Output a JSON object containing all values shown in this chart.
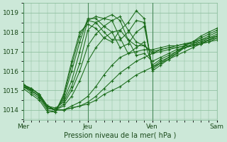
{
  "background_color": "#cce8d8",
  "grid_color": "#88bb99",
  "line_color": "#1a6b1a",
  "marker_color": "#1a6b1a",
  "xlim": [
    0,
    72
  ],
  "ylim": [
    1013.5,
    1019.5
  ],
  "yticks": [
    1014,
    1015,
    1016,
    1017,
    1018,
    1019
  ],
  "xtick_positions": [
    0,
    24,
    48,
    72
  ],
  "xtick_labels": [
    "Mer",
    "Jeu",
    "Ven",
    "Sam"
  ],
  "xlabel": "Pression niveau de la mer( hPa )",
  "series": [
    {
      "x": [
        0,
        3,
        6,
        9,
        12,
        15,
        18,
        21,
        24,
        27,
        30,
        33,
        36,
        39,
        42,
        45,
        48,
        51,
        54,
        57,
        60,
        63,
        66,
        69,
        72
      ],
      "y": [
        1015.2,
        1015.0,
        1014.7,
        1014.1,
        1014.0,
        1014.0,
        1014.1,
        1014.2,
        1014.3,
        1014.5,
        1014.8,
        1015.0,
        1015.2,
        1015.5,
        1015.8,
        1016.0,
        1016.2,
        1016.4,
        1016.6,
        1016.8,
        1017.0,
        1017.2,
        1017.4,
        1017.6,
        1017.8
      ]
    },
    {
      "x": [
        0,
        3,
        6,
        9,
        12,
        15,
        18,
        21,
        24,
        27,
        30,
        33,
        36,
        39,
        42,
        45,
        48,
        51,
        54,
        57,
        60,
        63,
        66,
        69,
        72
      ],
      "y": [
        1015.2,
        1015.0,
        1014.7,
        1014.1,
        1014.0,
        1014.0,
        1014.1,
        1014.2,
        1014.4,
        1014.7,
        1015.1,
        1015.5,
        1015.9,
        1016.2,
        1016.5,
        1016.7,
        1016.9,
        1017.1,
        1017.2,
        1017.3,
        1017.4,
        1017.5,
        1017.6,
        1017.7,
        1017.8
      ]
    },
    {
      "x": [
        0,
        3,
        6,
        9,
        12,
        15,
        18,
        21,
        24,
        27,
        30,
        33,
        36,
        39,
        42,
        45,
        48,
        51,
        54,
        57,
        60,
        63,
        66,
        69,
        72
      ],
      "y": [
        1015.2,
        1015.0,
        1014.7,
        1014.1,
        1014.0,
        1014.0,
        1014.2,
        1014.4,
        1014.7,
        1015.2,
        1015.8,
        1016.3,
        1016.7,
        1016.9,
        1017.0,
        1017.1,
        1017.1,
        1017.2,
        1017.3,
        1017.3,
        1017.4,
        1017.4,
        1017.5,
        1017.6,
        1017.7
      ]
    },
    {
      "x": [
        0,
        3,
        6,
        9,
        12,
        15,
        18,
        21,
        24,
        27,
        30,
        33,
        36,
        39,
        42,
        45,
        48,
        51,
        54,
        57,
        60,
        63,
        66,
        69,
        72
      ],
      "y": [
        1015.2,
        1015.1,
        1014.8,
        1014.2,
        1014.0,
        1014.2,
        1014.7,
        1015.5,
        1016.5,
        1017.2,
        1017.7,
        1018.0,
        1018.1,
        1017.6,
        1017.3,
        1017.3,
        1017.0,
        1017.1,
        1017.2,
        1017.2,
        1017.3,
        1017.3,
        1017.4,
        1017.5,
        1017.6
      ]
    },
    {
      "x": [
        0,
        3,
        6,
        9,
        12,
        15,
        18,
        21,
        24,
        27,
        30,
        33,
        36,
        39,
        42,
        45,
        48,
        51,
        54,
        57,
        60,
        63,
        66,
        69,
        72
      ],
      "y": [
        1015.3,
        1015.1,
        1014.8,
        1014.2,
        1014.0,
        1014.3,
        1015.0,
        1016.0,
        1017.3,
        1017.9,
        1018.3,
        1018.6,
        1018.8,
        1018.1,
        1017.5,
        1017.3,
        1016.9,
        1017.0,
        1017.1,
        1017.2,
        1017.3,
        1017.3,
        1017.4,
        1017.5,
        1017.7
      ]
    },
    {
      "x": [
        0,
        3,
        6,
        9,
        12,
        15,
        18,
        21,
        24,
        27,
        30,
        33,
        36,
        39,
        42,
        45,
        48,
        51,
        54,
        57,
        60,
        63,
        66,
        69,
        72
      ],
      "y": [
        1015.3,
        1015.1,
        1014.8,
        1014.2,
        1014.1,
        1014.4,
        1015.2,
        1016.4,
        1018.1,
        1018.5,
        1018.7,
        1018.9,
        1018.6,
        1017.6,
        1016.8,
        1016.9,
        1016.5,
        1016.7,
        1016.9,
        1017.1,
        1017.2,
        1017.3,
        1017.4,
        1017.6,
        1017.8
      ]
    },
    {
      "x": [
        0,
        3,
        6,
        9,
        12,
        15,
        18,
        21,
        24,
        27,
        30,
        33,
        36,
        39,
        42,
        45,
        48,
        51,
        54,
        57,
        60,
        63,
        66,
        69,
        72
      ],
      "y": [
        1015.3,
        1015.1,
        1014.8,
        1014.2,
        1014.0,
        1014.5,
        1015.5,
        1017.0,
        1018.6,
        1018.8,
        1018.7,
        1018.6,
        1017.7,
        1016.9,
        1017.2,
        1017.5,
        1016.3,
        1016.6,
        1016.8,
        1017.0,
        1017.2,
        1017.3,
        1017.5,
        1017.7,
        1017.9
      ]
    },
    {
      "x": [
        0,
        3,
        6,
        9,
        12,
        15,
        18,
        21,
        24,
        27,
        30,
        33,
        36,
        39,
        42,
        45,
        48,
        51,
        54,
        57,
        60,
        63,
        66,
        69,
        72
      ],
      "y": [
        1015.3,
        1015.0,
        1014.7,
        1014.1,
        1014.0,
        1014.6,
        1016.0,
        1017.5,
        1018.7,
        1018.7,
        1018.3,
        1018.0,
        1017.2,
        1017.4,
        1018.0,
        1018.3,
        1016.2,
        1016.5,
        1016.7,
        1016.9,
        1017.2,
        1017.4,
        1017.6,
        1017.8,
        1018.0
      ]
    },
    {
      "x": [
        0,
        3,
        6,
        9,
        12,
        15,
        18,
        21,
        24,
        27,
        30,
        33,
        36,
        39,
        42,
        45,
        48,
        51,
        54,
        57,
        60,
        63,
        66,
        69,
        72
      ],
      "y": [
        1015.2,
        1014.9,
        1014.6,
        1014.0,
        1013.9,
        1014.7,
        1016.3,
        1017.8,
        1018.6,
        1018.5,
        1018.0,
        1017.6,
        1017.6,
        1018.0,
        1018.6,
        1018.5,
        1016.1,
        1016.4,
        1016.7,
        1017.0,
        1017.3,
        1017.5,
        1017.7,
        1017.9,
        1018.1
      ]
    },
    {
      "x": [
        0,
        3,
        6,
        9,
        12,
        15,
        18,
        21,
        24,
        27,
        30,
        33,
        36,
        39,
        42,
        45,
        48,
        51,
        54,
        57,
        60,
        63,
        66,
        69,
        72
      ],
      "y": [
        1015.1,
        1014.8,
        1014.5,
        1013.9,
        1013.9,
        1014.8,
        1016.5,
        1018.0,
        1018.4,
        1018.2,
        1017.7,
        1017.5,
        1018.1,
        1018.5,
        1019.1,
        1018.7,
        1016.0,
        1016.3,
        1016.6,
        1016.9,
        1017.3,
        1017.5,
        1017.8,
        1018.0,
        1018.2
      ]
    }
  ],
  "axis_fontsize": 7,
  "tick_fontsize": 6.5,
  "linewidth": 0.75,
  "markersize": 2.5
}
